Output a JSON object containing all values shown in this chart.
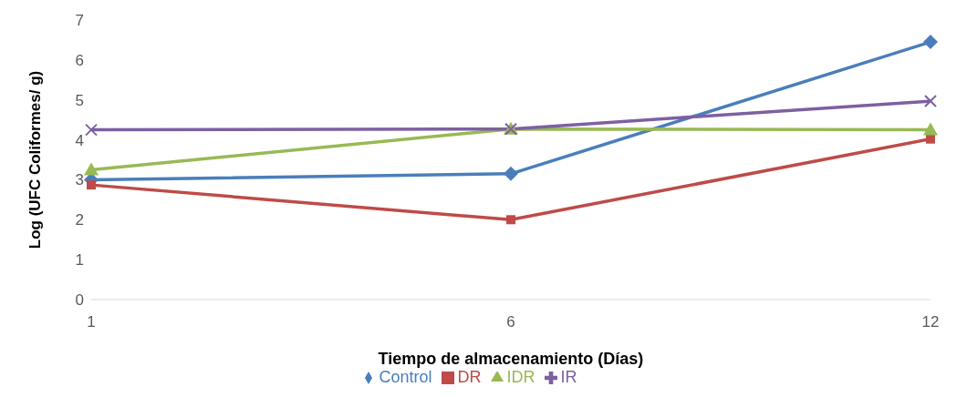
{
  "chart_data": {
    "type": "line",
    "xlabel": "Tiempo de almacenamiento (Días)",
    "ylabel": "Log (UFC Coliformes/ g)",
    "categories": [
      "1",
      "6",
      "12"
    ],
    "series": [
      {
        "name": "Control",
        "color": "#4a7ebb",
        "marker": "diamond",
        "values": [
          3.0,
          3.15,
          6.45
        ]
      },
      {
        "name": "DR",
        "color": "#be4b48",
        "marker": "square",
        "values": [
          2.87,
          2.0,
          4.02
        ]
      },
      {
        "name": "IDR",
        "color": "#98b954",
        "marker": "triangle",
        "values": [
          3.25,
          4.27,
          4.25
        ]
      },
      {
        "name": "IR",
        "color": "#7d60a0",
        "marker": "cross",
        "values": [
          4.25,
          4.27,
          4.97
        ]
      }
    ],
    "ylim": [
      0,
      7
    ],
    "yticks": [
      0,
      1,
      2,
      3,
      4,
      5,
      6,
      7
    ],
    "grid": false,
    "legend": "bottom",
    "line_style": "solid"
  }
}
